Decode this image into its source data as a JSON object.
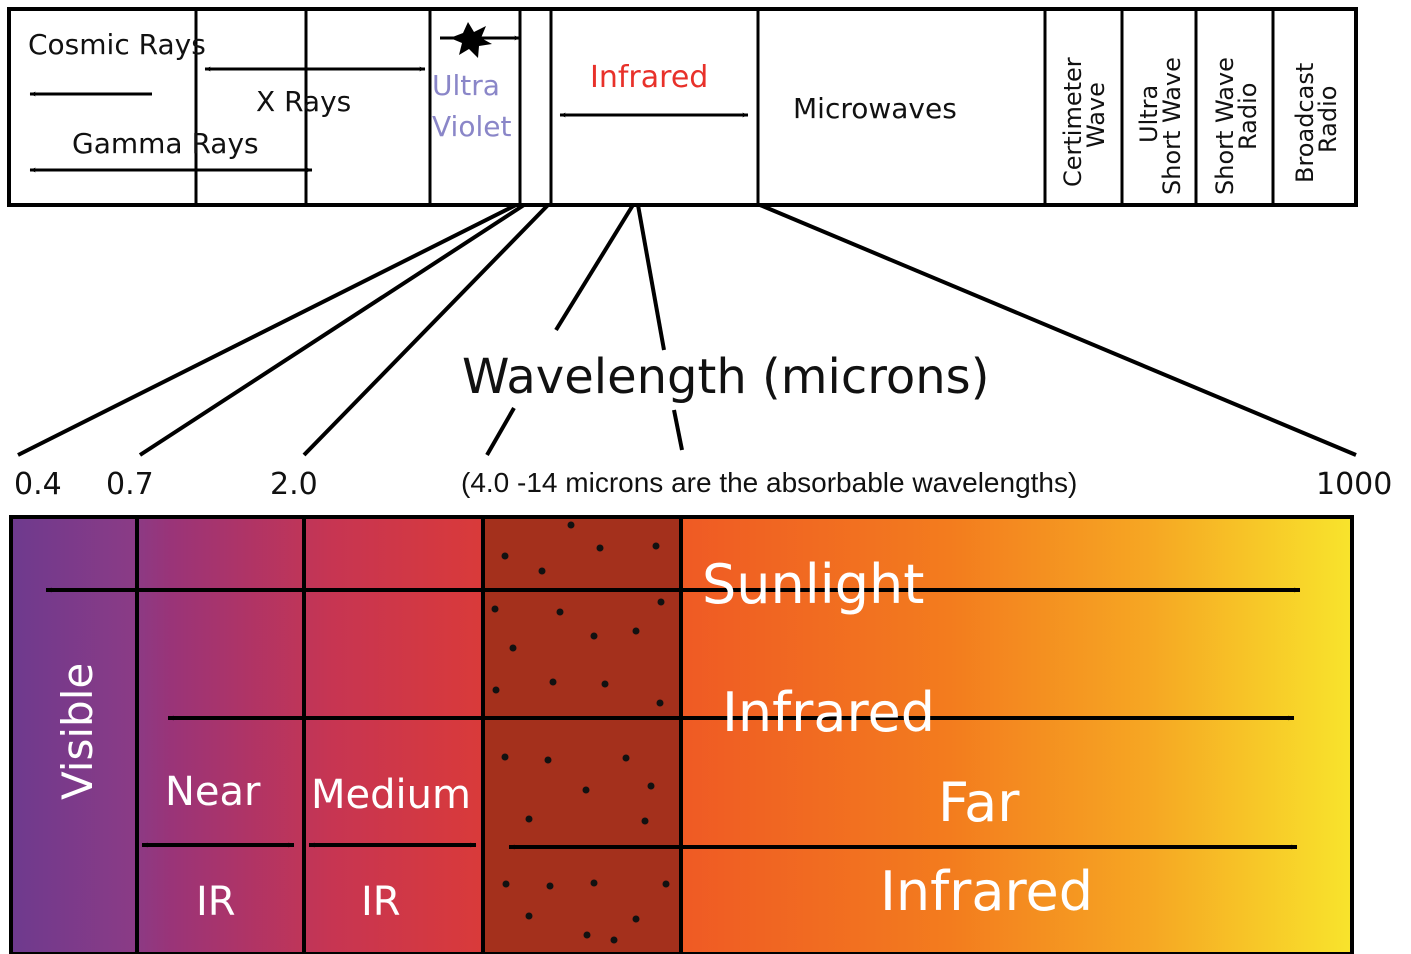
{
  "spectrum_bar": {
    "cosmic_rays": "Cosmic Rays",
    "x_rays": "X Rays",
    "gamma_rays": "Gamma Rays",
    "ultra": "Ultra",
    "violet": "Violet",
    "infrared": "Infrared",
    "microwaves": "Microwaves",
    "centimeter_line1": "Certimeter",
    "centimeter_line2": "Wave",
    "ultra_short_line1": "Ultra",
    "ultra_short_line2": "Short Wave",
    "short_wave_line1": "Short Wave",
    "short_wave_line2": "Radio",
    "broadcast_line1": "Broadcast",
    "broadcast_line2": "Radio"
  },
  "wavelength_title": "Wavelength (microns)",
  "ticks": [
    "0.4",
    "0.7",
    "2.0",
    "1000"
  ],
  "absorbable_note": "(4.0 -14 microns are the absorbable wavelengths)",
  "infrared_bar": {
    "visible": "Visible",
    "sunlight": "Sunlight",
    "infrared": "Infrared",
    "near": "Near",
    "near_ir": "IR",
    "medium": "Medium",
    "medium_ir": "IR",
    "far": "Far",
    "far_infrared": "Infrared"
  },
  "colors": {
    "infrared_label": "#e8312a",
    "uv_label": "#8a86c8",
    "visible": "#7a3a8f",
    "far_end": "#f7e62a"
  }
}
